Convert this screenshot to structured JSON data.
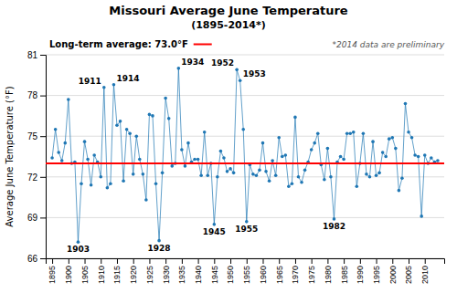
{
  "chart_data": {
    "type": "line",
    "title": "Missouri Average June Temperature",
    "subtitle": "(1895-2014*)",
    "y_label": "Average June Temperature (°F)",
    "marker": "circle",
    "grid": true,
    "xlim": [
      1893,
      2016
    ],
    "xticks": [
      1895,
      1900,
      1905,
      1910,
      1915,
      1920,
      1925,
      1930,
      1935,
      1940,
      1945,
      1950,
      1955,
      1960,
      1965,
      1970,
      1975,
      1980,
      1985,
      1990,
      1995,
      2000,
      2005,
      2010
    ],
    "ylim": [
      66.0,
      81.0
    ],
    "yticks": [
      66,
      69,
      72,
      75,
      78,
      81
    ],
    "average": {
      "value": 73.0,
      "label": "Long-term average: 73.0°F",
      "color": "#FF0000"
    },
    "note": "*2014 data are preliminary",
    "annotations": [
      {
        "text": "1903",
        "x": 1903,
        "y": 67.2
      },
      {
        "text": "1911",
        "x": 1911,
        "y": 78.6
      },
      {
        "text": "1914",
        "x": 1914,
        "y": 78.8
      },
      {
        "text": "1928",
        "x": 1928,
        "y": 67.3
      },
      {
        "text": "1934",
        "x": 1934,
        "y": 80.0
      },
      {
        "text": "1945",
        "x": 1945,
        "y": 68.5
      },
      {
        "text": "1952",
        "x": 1952,
        "y": 79.9
      },
      {
        "text": "1953",
        "x": 1953,
        "y": 79.1
      },
      {
        "text": "1955",
        "x": 1955,
        "y": 68.7
      },
      {
        "text": "1982",
        "x": 1982,
        "y": 68.9
      }
    ],
    "x": [
      1895,
      1896,
      1897,
      1898,
      1899,
      1900,
      1901,
      1902,
      1903,
      1904,
      1905,
      1906,
      1907,
      1908,
      1909,
      1910,
      1911,
      1912,
      1913,
      1914,
      1915,
      1916,
      1917,
      1918,
      1919,
      1920,
      1921,
      1922,
      1923,
      1924,
      1925,
      1926,
      1927,
      1928,
      1929,
      1930,
      1931,
      1932,
      1933,
      1934,
      1935,
      1936,
      1937,
      1938,
      1939,
      1940,
      1941,
      1942,
      1943,
      1944,
      1945,
      1946,
      1947,
      1948,
      1949,
      1950,
      1951,
      1952,
      1953,
      1954,
      1955,
      1956,
      1957,
      1958,
      1959,
      1960,
      1961,
      1962,
      1963,
      1964,
      1965,
      1966,
      1967,
      1968,
      1969,
      1970,
      1971,
      1972,
      1973,
      1974,
      1975,
      1976,
      1977,
      1978,
      1979,
      1980,
      1981,
      1982,
      1983,
      1984,
      1985,
      1986,
      1987,
      1988,
      1989,
      1990,
      1991,
      1992,
      1993,
      1994,
      1995,
      1996,
      1997,
      1998,
      1999,
      2000,
      2001,
      2002,
      2003,
      2004,
      2005,
      2006,
      2007,
      2008,
      2009,
      2010,
      2011,
      2012,
      2013,
      2014
    ],
    "values": [
      73.4,
      75.5,
      73.8,
      73.2,
      74.5,
      77.7,
      73.0,
      73.1,
      67.2,
      71.5,
      74.6,
      73.3,
      71.4,
      73.6,
      73.1,
      72.0,
      78.6,
      71.2,
      71.5,
      78.8,
      75.8,
      76.1,
      71.7,
      75.5,
      75.2,
      72.2,
      75.0,
      73.3,
      72.2,
      70.3,
      76.6,
      76.5,
      71.5,
      67.3,
      72.3,
      77.8,
      76.3,
      72.8,
      73.0,
      80.0,
      74.0,
      72.8,
      74.5,
      73.1,
      73.3,
      73.3,
      72.1,
      75.3,
      72.1,
      73.0,
      68.5,
      72.0,
      73.9,
      73.4,
      72.4,
      72.6,
      72.3,
      79.9,
      79.1,
      75.5,
      68.7,
      72.9,
      72.2,
      72.1,
      72.5,
      74.5,
      72.4,
      71.7,
      73.2,
      72.1,
      74.9,
      73.5,
      73.6,
      71.3,
      71.5,
      76.4,
      72.0,
      71.6,
      72.5,
      73.1,
      74.0,
      74.5,
      75.2,
      72.9,
      71.8,
      74.1,
      72.0,
      68.9,
      73.1,
      73.5,
      73.3,
      75.2,
      75.2,
      75.3,
      71.3,
      73.0,
      75.2,
      72.2,
      72.0,
      74.6,
      72.1,
      72.3,
      73.8,
      73.5,
      74.8,
      74.9,
      74.1,
      71.0,
      71.9,
      77.4,
      75.3,
      74.9,
      73.6,
      73.5,
      69.1,
      73.6,
      73.0,
      73.4,
      73.1,
      73.2
    ]
  }
}
